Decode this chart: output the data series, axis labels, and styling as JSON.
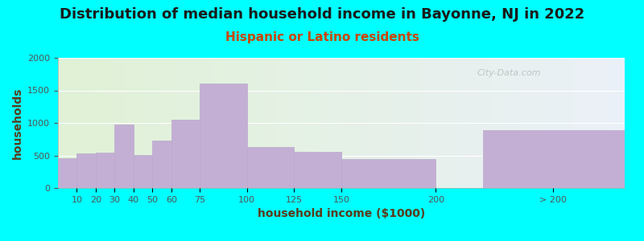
{
  "title": "Distribution of median household income in Bayonne, NJ in 2022",
  "subtitle": "Hispanic or Latino residents",
  "xlabel": "household income ($1000)",
  "ylabel": "households",
  "background_color": "#00FFFF",
  "bar_color": "#c4afd4",
  "bar_edge_color": "#b8a8cc",
  "categories": [
    "10",
    "20",
    "30",
    "40",
    "50",
    "60",
    "75",
    "100",
    "125",
    "150",
    "200",
    "> 200"
  ],
  "values": [
    460,
    525,
    540,
    975,
    505,
    730,
    1050,
    1600,
    635,
    560,
    445,
    890
  ],
  "bar_lefts": [
    0,
    10,
    20,
    30,
    40,
    50,
    60,
    75,
    100,
    125,
    150,
    225
  ],
  "bar_widths": [
    10,
    10,
    10,
    10,
    10,
    10,
    15,
    25,
    25,
    25,
    50,
    75
  ],
  "xtick_positions": [
    10,
    20,
    30,
    40,
    50,
    60,
    75,
    100,
    125,
    150,
    200,
    262
  ],
  "xtick_labels": [
    "10",
    "20",
    "30",
    "40",
    "50",
    "60",
    "75",
    "100",
    "125",
    "150",
    "200",
    "> 200"
  ],
  "xlim": [
    0,
    300
  ],
  "ylim": [
    0,
    2000
  ],
  "yticks": [
    0,
    500,
    1000,
    1500,
    2000
  ],
  "watermark": "City-Data.com",
  "title_fontsize": 13,
  "subtitle_fontsize": 11,
  "axis_label_fontsize": 10,
  "tick_fontsize": 8,
  "title_color": "#1a1a1a",
  "subtitle_color": "#cc4400",
  "axis_label_color": "#5a3a1a"
}
